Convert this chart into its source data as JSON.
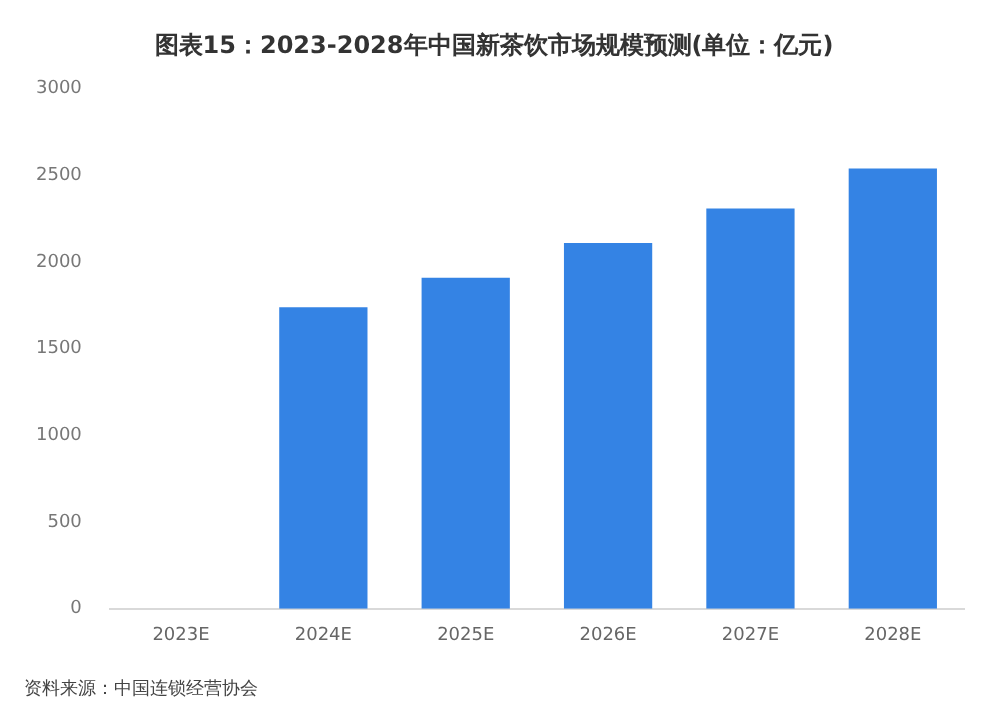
{
  "chart_data": {
    "type": "bar",
    "title": "图表15：2023-2028年中国新茶饮市场规模预测(单位：亿元)",
    "categories": [
      "2023E",
      "2024E",
      "2025E",
      "2026E",
      "2027E",
      "2028E"
    ],
    "values": [
      null,
      1740,
      1910,
      2110,
      2310,
      2540
    ],
    "color": "#3483e4",
    "ylim": [
      0,
      3000
    ],
    "yticks": [
      0,
      500,
      1000,
      1500,
      2000,
      2500,
      3000
    ],
    "grid": false,
    "legend": false,
    "annotations": [
      "资料来源：中国连锁经营协会"
    ]
  }
}
